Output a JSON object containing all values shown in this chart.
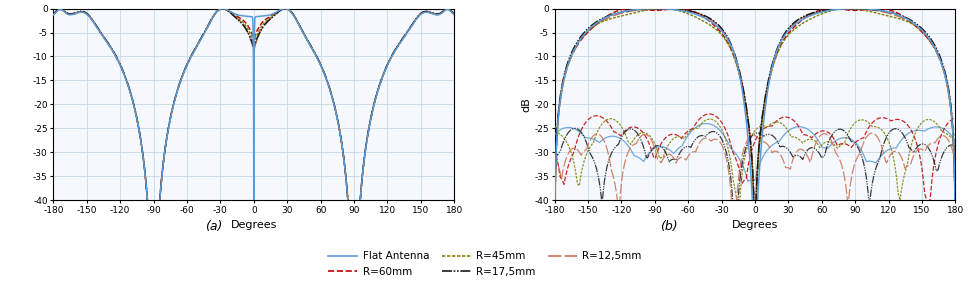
{
  "xlim": [
    -180,
    180
  ],
  "ylim": [
    -40,
    0
  ],
  "xticks": [
    -180,
    -150,
    -120,
    -90,
    -60,
    -30,
    0,
    30,
    60,
    90,
    120,
    150,
    180
  ],
  "yticks": [
    0,
    -5,
    -10,
    -15,
    -20,
    -25,
    -30,
    -35,
    -40
  ],
  "xlabel": "Degrees",
  "ylabel_b": "dB",
  "label_a": "(a)",
  "label_b": "(b)",
  "colors": {
    "flat": "#5b9bd5",
    "R60": "#c00000",
    "R45": "#808000",
    "R17": "#1a1a1a",
    "R12": "#c87050"
  },
  "legend": [
    {
      "label": "Flat Antenna",
      "color": "#5b9bd5",
      "ls": "solid"
    },
    {
      "label": "R=60mm",
      "color": "#c00000",
      "ls": "dashed"
    },
    {
      "label": "R=45mm",
      "color": "#808000",
      "ls": "dotted"
    },
    {
      "label": "R=17,5mm",
      "color": "#1a1a1a",
      "ls": "dashdot"
    },
    {
      "label": "R=12,5mm",
      "color": "#c87050",
      "ls": "longdash"
    }
  ],
  "grid_color": "#c8d8e8",
  "bg_color": "#f5f8fc"
}
